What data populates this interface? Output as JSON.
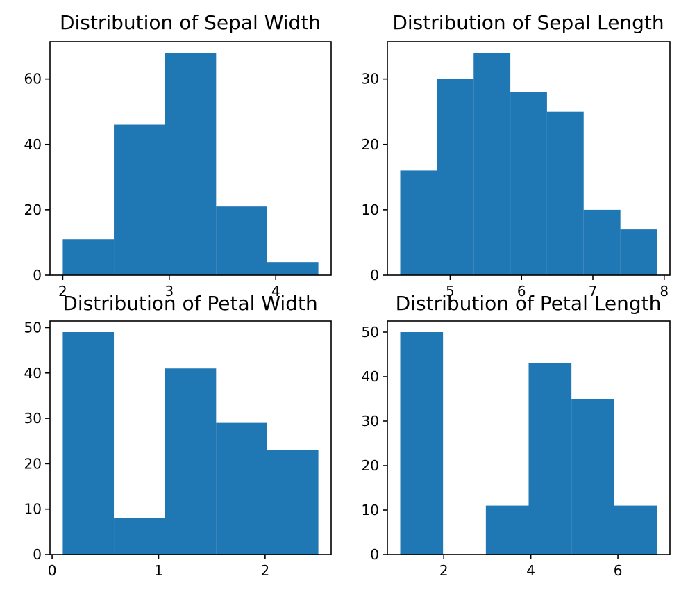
{
  "colors": {
    "bar": "#1f77b4",
    "axis": "#000000",
    "background": "#ffffff"
  },
  "chart_data": [
    {
      "type": "bar",
      "title": "Distribution of Sepal Width",
      "xlabel": "",
      "ylabel": "",
      "grid": false,
      "bin_edges": [
        2.0,
        2.48,
        2.96,
        3.44,
        3.92,
        4.4
      ],
      "values": [
        11,
        46,
        68,
        21,
        4
      ],
      "xlim": [
        1.88,
        4.52
      ],
      "ylim": [
        0,
        71.4
      ],
      "xticks": [
        2,
        3,
        4
      ],
      "xtick_labels": [
        "2",
        "3",
        "4"
      ],
      "yticks": [
        0,
        20,
        40,
        60
      ],
      "ytick_labels": [
        "0",
        "20",
        "40",
        "60"
      ]
    },
    {
      "type": "bar",
      "title": "Distribution of Sepal Length",
      "xlabel": "",
      "ylabel": "",
      "grid": false,
      "bin_edges": [
        4.3,
        4.814,
        5.329,
        5.843,
        6.357,
        6.871,
        7.386,
        7.9
      ],
      "values": [
        16,
        30,
        34,
        28,
        25,
        10,
        7
      ],
      "xlim": [
        4.12,
        8.08
      ],
      "ylim": [
        0,
        35.7
      ],
      "xticks": [
        5,
        6,
        7,
        8
      ],
      "xtick_labels": [
        "5",
        "6",
        "7",
        "8"
      ],
      "yticks": [
        0,
        10,
        20,
        30
      ],
      "ytick_labels": [
        "0",
        "10",
        "20",
        "30"
      ]
    },
    {
      "type": "bar",
      "title": "Distribution of Petal Width",
      "xlabel": "",
      "ylabel": "",
      "grid": false,
      "bin_edges": [
        0.1,
        0.58,
        1.06,
        1.54,
        2.02,
        2.5
      ],
      "values": [
        49,
        8,
        41,
        29,
        23
      ],
      "xlim": [
        -0.02,
        2.62
      ],
      "ylim": [
        0,
        51.45
      ],
      "xticks": [
        0,
        1,
        2
      ],
      "xtick_labels": [
        "0",
        "1",
        "2"
      ],
      "yticks": [
        0,
        10,
        20,
        30,
        40,
        50
      ],
      "ytick_labels": [
        "0",
        "10",
        "20",
        "30",
        "40",
        "50"
      ]
    },
    {
      "type": "bar",
      "title": "Distribution of Petal Length",
      "xlabel": "",
      "ylabel": "",
      "grid": false,
      "bin_edges": [
        1.0,
        1.983,
        2.967,
        3.95,
        4.933,
        5.917,
        6.9
      ],
      "values": [
        50,
        0,
        11,
        43,
        35,
        11
      ],
      "xlim": [
        0.705,
        7.195
      ],
      "ylim": [
        0,
        52.5
      ],
      "xticks": [
        2,
        4,
        6
      ],
      "xtick_labels": [
        "2",
        "4",
        "6"
      ],
      "yticks": [
        0,
        10,
        20,
        30,
        40,
        50
      ],
      "ytick_labels": [
        "0",
        "10",
        "20",
        "30",
        "40",
        "50"
      ]
    }
  ]
}
